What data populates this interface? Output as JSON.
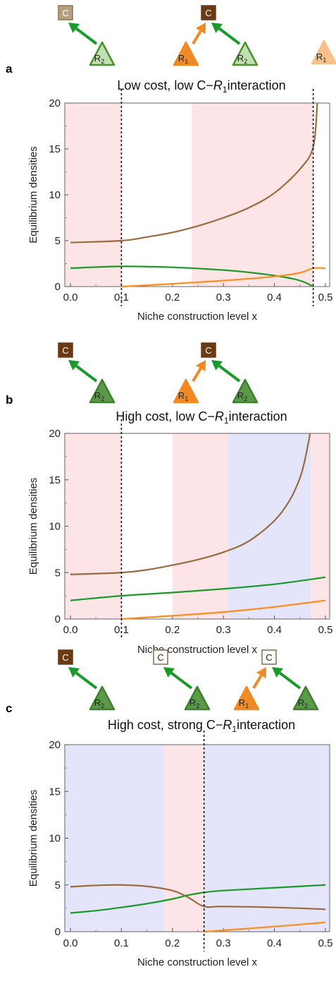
{
  "chart_data": [
    {
      "panel": "a",
      "type": "line",
      "title": "Low cost, low C−R1 interaction",
      "title_main": "Low cost, low C−",
      "title_var": "R",
      "title_sub": "1",
      "title_tail": "interaction",
      "xlabel": "Niche construction level x",
      "ylabel": "Equilibrium densities",
      "xlim": [
        0,
        0.5
      ],
      "ylim": [
        0,
        20
      ],
      "xticks": [
        "0.0",
        "0.1",
        "0.2",
        "0.3",
        "0.4",
        "0.5"
      ],
      "xtick_values": [
        0,
        0.1,
        0.2,
        0.3,
        0.4,
        0.5
      ],
      "yticks": [
        "0",
        "5",
        "10",
        "15",
        "20"
      ],
      "ytick_values": [
        0,
        5,
        10,
        15,
        20
      ],
      "regions": [
        {
          "x0": 0,
          "x1": 0.1,
          "color": "#fde4e6"
        },
        {
          "x0": 0.238,
          "x1": 0.476,
          "color": "#fde4e6"
        }
      ],
      "vlines": [
        0.1,
        0.476
      ],
      "series": [
        {
          "color": "#9a6b3f",
          "x": [
            0,
            0.1,
            0.15,
            0.2,
            0.25,
            0.3,
            0.35,
            0.4,
            0.45,
            0.476,
            0.484
          ],
          "y": [
            4.8,
            5.0,
            5.4,
            5.9,
            6.6,
            7.5,
            8.6,
            10.2,
            12.8,
            15.2,
            20
          ]
        },
        {
          "color": "#1a9a2a",
          "x": [
            0,
            0.1,
            0.2,
            0.3,
            0.35,
            0.4,
            0.44,
            0.46,
            0.476
          ],
          "y": [
            2.0,
            2.2,
            2.1,
            1.8,
            1.55,
            1.2,
            0.8,
            0.45,
            0.0
          ]
        },
        {
          "color": "#ff8c1a",
          "x": [
            0.1,
            0.2,
            0.3,
            0.4,
            0.45,
            0.476,
            0.5
          ],
          "y": [
            0.0,
            0.3,
            0.65,
            1.1,
            1.5,
            2.0,
            2.0
          ]
        }
      ],
      "icons": [
        {
          "consumer": "C",
          "consumer_style": "beige",
          "r1": false,
          "r2_style": "light"
        },
        {
          "consumer": "C",
          "consumer_style": "dark",
          "r1": true,
          "r1_style": "orange",
          "r2_style": "light"
        },
        {
          "consumer": "",
          "consumer_style": "none",
          "r1": true,
          "r1_style": "pale",
          "r2_style": "none",
          "r1_only": true
        }
      ]
    },
    {
      "panel": "b",
      "type": "line",
      "title": "High cost, low C−R1 interaction",
      "title_main": "High cost, low C−",
      "title_var": "R",
      "title_sub": "1",
      "title_tail": "interaction",
      "xlabel": "Niche construction level x",
      "ylabel": "Equilibrium densities",
      "xlim": [
        0,
        0.5
      ],
      "ylim": [
        0,
        20
      ],
      "xticks": [
        "0.0",
        "0.1",
        "0.2",
        "0.3",
        "0.4",
        "0.5"
      ],
      "xtick_values": [
        0,
        0.1,
        0.2,
        0.3,
        0.4,
        0.5
      ],
      "yticks": [
        "0",
        "5",
        "10",
        "15",
        "20"
      ],
      "ytick_values": [
        0,
        5,
        10,
        15,
        20
      ],
      "regions": [
        {
          "x0": 0,
          "x1": 0.1,
          "color": "#fde4e6"
        },
        {
          "x0": 0.2,
          "x1": 0.31,
          "color": "#fde4e6"
        },
        {
          "x0": 0.31,
          "x1": 0.472,
          "color": "#e4e4fb"
        },
        {
          "x0": 0.472,
          "x1": 0.5,
          "color": "#fde4e6"
        }
      ],
      "vlines": [
        0.1
      ],
      "series": [
        {
          "color": "#9a6b3f",
          "x": [
            0,
            0.1,
            0.15,
            0.2,
            0.25,
            0.3,
            0.35,
            0.4,
            0.43,
            0.45,
            0.46,
            0.47
          ],
          "y": [
            4.8,
            5.0,
            5.3,
            5.8,
            6.4,
            7.2,
            8.4,
            10.6,
            12.8,
            15.2,
            17.2,
            20
          ]
        },
        {
          "color": "#1a9a2a",
          "x": [
            0,
            0.1,
            0.2,
            0.3,
            0.4,
            0.5
          ],
          "y": [
            2.0,
            2.5,
            2.85,
            3.25,
            3.75,
            4.5
          ]
        },
        {
          "color": "#ff8c1a",
          "x": [
            0.1,
            0.2,
            0.3,
            0.4,
            0.5
          ],
          "y": [
            0.0,
            0.35,
            0.75,
            1.3,
            2.0
          ]
        }
      ],
      "icons": [
        {
          "consumer": "C",
          "consumer_style": "dark",
          "r1": false,
          "r2_style": "dark"
        },
        {
          "consumer": "C",
          "consumer_style": "dark",
          "r1": true,
          "r1_style": "orange",
          "r2_style": "dark"
        }
      ]
    },
    {
      "panel": "c",
      "type": "line",
      "title": "High cost, strong C−R1 interaction",
      "title_main": "High cost, strong C−",
      "title_var": "R",
      "title_sub": "1",
      "title_tail": "interaction",
      "xlabel": "Niche construction level x",
      "ylabel": "Equilibrium densities",
      "xlim": [
        0,
        0.5
      ],
      "ylim": [
        0,
        20
      ],
      "xticks": [
        "0.0",
        "0.1",
        "0.2",
        "0.3",
        "0.4",
        "0.5"
      ],
      "xtick_values": [
        0,
        0.1,
        0.2,
        0.3,
        0.4,
        0.5
      ],
      "yticks": [
        "0",
        "5",
        "10",
        "15",
        "20"
      ],
      "ytick_values": [
        0,
        5,
        10,
        15,
        20
      ],
      "regions": [
        {
          "x0": 0,
          "x1": 0.183,
          "color": "#e4e4fb"
        },
        {
          "x0": 0.183,
          "x1": 0.262,
          "color": "#fde4e6"
        },
        {
          "x0": 0.262,
          "x1": 0.5,
          "color": "#e4e4fb"
        }
      ],
      "vlines": [
        0.262
      ],
      "series": [
        {
          "color": "#9a6b3f",
          "x": [
            0,
            0.05,
            0.1,
            0.15,
            0.2,
            0.23,
            0.262,
            0.3,
            0.4,
            0.5
          ],
          "y": [
            4.8,
            4.95,
            5.0,
            4.85,
            4.4,
            3.7,
            2.7,
            2.7,
            2.6,
            2.4
          ]
        },
        {
          "color": "#1a9a2a",
          "x": [
            0,
            0.05,
            0.1,
            0.15,
            0.2,
            0.23,
            0.262,
            0.3,
            0.4,
            0.5
          ],
          "y": [
            2.0,
            2.25,
            2.6,
            3.0,
            3.5,
            3.9,
            4.2,
            4.4,
            4.7,
            5.0
          ]
        },
        {
          "color": "#ff8c1a",
          "x": [
            0.262,
            0.3,
            0.4,
            0.5
          ],
          "y": [
            0.0,
            0.15,
            0.55,
            1.0
          ]
        }
      ],
      "icons": [
        {
          "consumer": "C",
          "consumer_style": "dark",
          "r1": false,
          "r2_style": "dark"
        },
        {
          "consumer": "C",
          "consumer_style": "white",
          "r1": false,
          "r2_style": "dark"
        },
        {
          "consumer": "C",
          "consumer_style": "white",
          "r1": true,
          "r1_style": "orange",
          "r2_style": "dark"
        }
      ]
    }
  ],
  "labels": {
    "r2_letter": "R",
    "r2_sub": "2",
    "r1_letter": "R",
    "r1_sub": "1"
  },
  "colors": {
    "consumer_dark": "#6b3a12",
    "consumer_beige": "#b7a07f",
    "arrow_green": "#1a9a2a",
    "arrow_orange": "#f08a24",
    "r2_light": "#bfe0b1",
    "r2_dark": "#5a9a48",
    "r1_orange": "#f08a24",
    "r1_pale": "#f8c08a"
  }
}
